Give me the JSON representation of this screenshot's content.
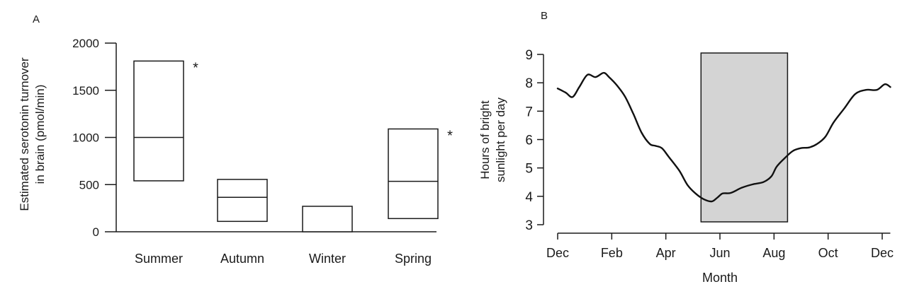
{
  "chart_data": [
    {
      "panel_label": "A",
      "type": "box",
      "ylabel_lines": [
        "Estimated serotonin turnover",
        "in brain (pmol/min)"
      ],
      "ylim": [
        0,
        2000
      ],
      "yticks": [
        0,
        500,
        1000,
        1500,
        2000
      ],
      "categories": [
        "Summer",
        "Autumn",
        "Winter",
        "Spring"
      ],
      "boxes": [
        {
          "category": "Summer",
          "low": 540,
          "median": 1000,
          "high": 1810,
          "significant": true
        },
        {
          "category": "Autumn",
          "low": 110,
          "median": 365,
          "high": 555,
          "significant": false
        },
        {
          "category": "Winter",
          "low": 0,
          "median": null,
          "high": 270,
          "significant": false
        },
        {
          "category": "Spring",
          "low": 140,
          "median": 535,
          "high": 1090,
          "significant": true
        }
      ],
      "significance_marker": "*"
    },
    {
      "panel_label": "B",
      "type": "line",
      "xlabel": "Month",
      "ylabel_lines": [
        "Hours of bright",
        "sunlight per day"
      ],
      "ylim": [
        3,
        9
      ],
      "yticks": [
        3,
        4,
        5,
        6,
        7,
        8,
        9
      ],
      "xlim": [
        0,
        12.3
      ],
      "xtick_labels": [
        "Dec",
        "Feb",
        "Apr",
        "Jun",
        "Aug",
        "Oct",
        "Dec"
      ],
      "xtick_positions": [
        0,
        2,
        4,
        6,
        8,
        10,
        12
      ],
      "shaded_region": {
        "x": [
          5.3,
          8.5
        ],
        "y": [
          3.1,
          9.05
        ],
        "color": "#d4d4d4"
      },
      "x": [
        0,
        0.3,
        0.55,
        0.8,
        1.1,
        1.4,
        1.7,
        1.9,
        2.2,
        2.5,
        2.8,
        3.1,
        3.4,
        3.6,
        3.85,
        4.1,
        4.5,
        4.8,
        5.1,
        5.4,
        5.7,
        5.9,
        6.1,
        6.4,
        6.8,
        7.2,
        7.6,
        7.9,
        8.1,
        8.4,
        8.7,
        9.0,
        9.3,
        9.6,
        9.9,
        10.2,
        10.6,
        11.0,
        11.4,
        11.8,
        12.1,
        12.3
      ],
      "y": [
        7.8,
        7.65,
        7.5,
        7.85,
        8.28,
        8.2,
        8.35,
        8.2,
        7.9,
        7.5,
        6.9,
        6.25,
        5.85,
        5.78,
        5.7,
        5.4,
        4.9,
        4.4,
        4.1,
        3.9,
        3.82,
        3.95,
        4.1,
        4.12,
        4.3,
        4.42,
        4.5,
        4.7,
        5.05,
        5.35,
        5.6,
        5.7,
        5.72,
        5.85,
        6.1,
        6.6,
        7.1,
        7.6,
        7.75,
        7.75,
        7.95,
        7.85
      ]
    }
  ]
}
